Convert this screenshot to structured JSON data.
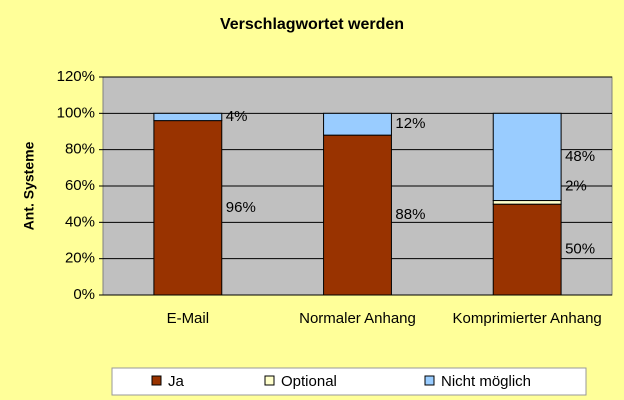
{
  "chart_data": {
    "type": "stacked_bar",
    "title": "Verschlagwortet werden",
    "y_label": "Ant. Systeme",
    "categories": [
      "E-Mail",
      "Normaler Anhang",
      "Komprimierter Anhang"
    ],
    "series": [
      {
        "name": "Ja",
        "color": "#993300",
        "values": [
          96,
          88,
          50
        ],
        "value_labels": [
          "96%",
          "88%",
          "50%"
        ]
      },
      {
        "name": "Optional",
        "color": "#FFFFCC",
        "values": [
          0,
          0,
          2
        ],
        "value_labels": [
          null,
          null,
          "2%"
        ]
      },
      {
        "name": "Nicht möglich",
        "color": "#99CCFF",
        "values": [
          4,
          12,
          48
        ],
        "value_labels": [
          "4%",
          "12%",
          "48%"
        ]
      }
    ],
    "ylim": [
      0,
      120
    ],
    "yticks": [
      {
        "value": 0,
        "label": "0%"
      },
      {
        "value": 20,
        "label": "20%"
      },
      {
        "value": 40,
        "label": "40%"
      },
      {
        "value": 60,
        "label": "60%"
      },
      {
        "value": 80,
        "label": "80%"
      },
      {
        "value": 100,
        "label": "100%"
      },
      {
        "value": 120,
        "label": "120%"
      }
    ],
    "grid": true,
    "legend": "bottom"
  }
}
